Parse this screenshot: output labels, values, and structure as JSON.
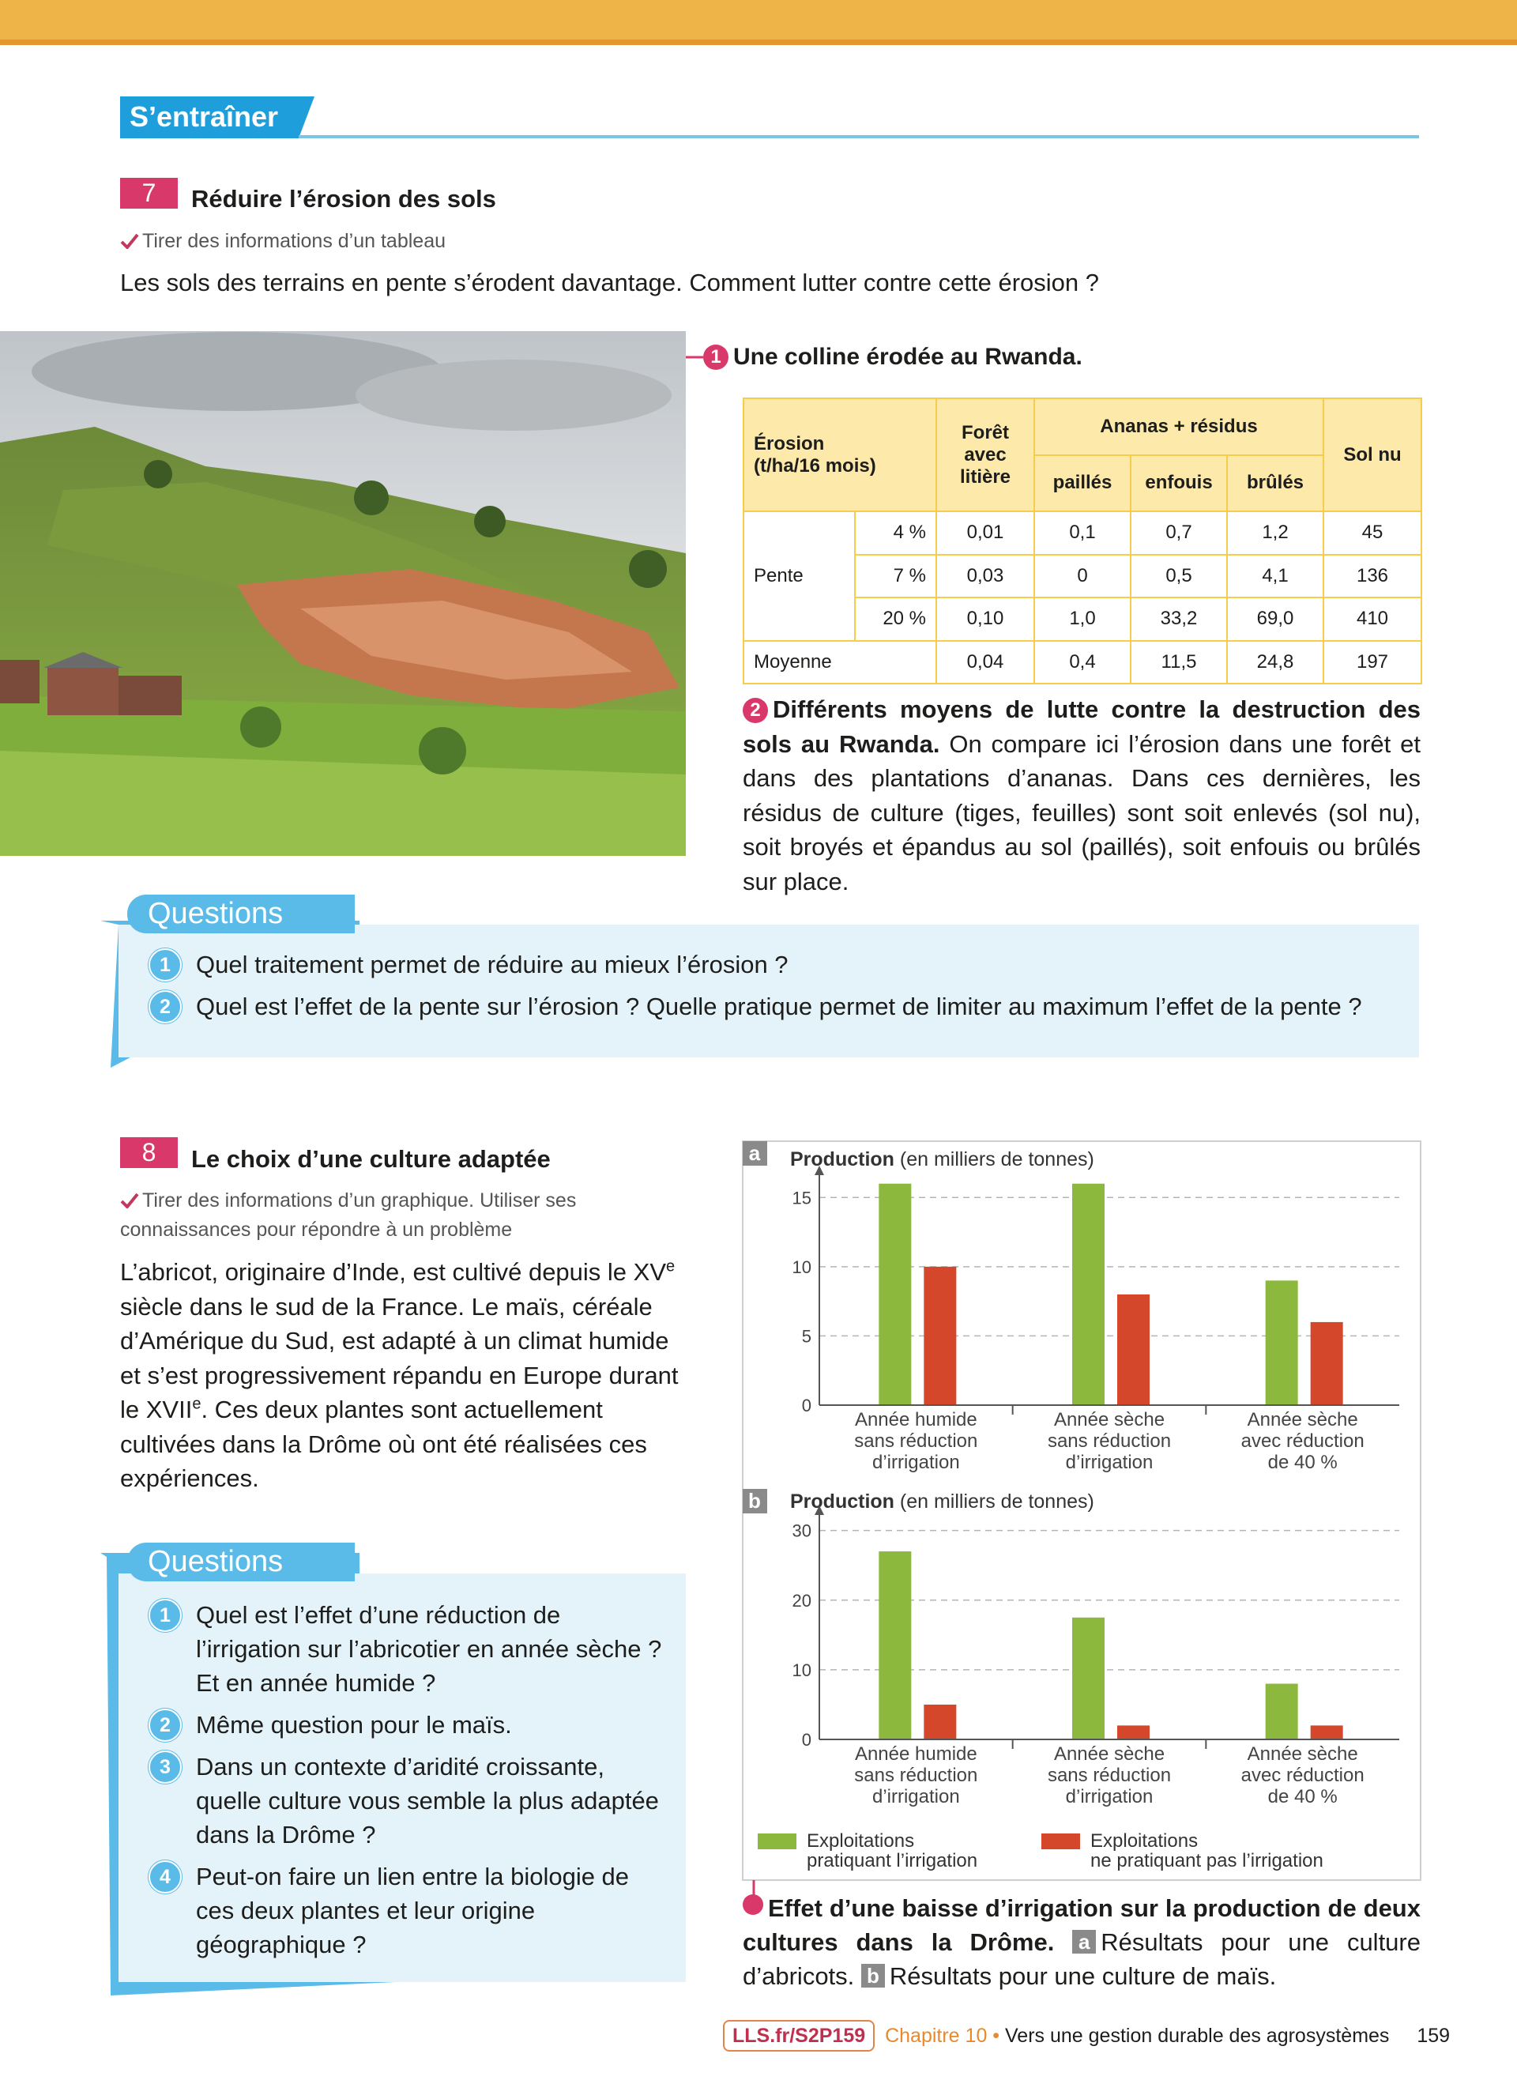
{
  "header": {
    "section": "S’entraîner"
  },
  "exercise7": {
    "number": "7",
    "title": "Réduire l’érosion des sols",
    "skill": "Tirer des informations d’un tableau",
    "intro": "Les sols des terrains en pente s’érodent davantage. Comment lutter contre cette érosion ?",
    "doc1": {
      "number": "1",
      "caption": "Une colline érodée au Rwanda."
    },
    "table": {
      "corner": "Érosion\n(t/ha/16 mois)",
      "forest": "Forêt\navec\nlitière",
      "group": "Ananas + résidus",
      "sub": [
        "paillés",
        "enfouis",
        "brûlés"
      ],
      "bare": "Sol nu",
      "row_group": "Pente",
      "rows": [
        {
          "label": "4 %",
          "cells": [
            "0,01",
            "0,1",
            "0,7",
            "1,2",
            "45"
          ]
        },
        {
          "label": "7 %",
          "cells": [
            "0,03",
            "0",
            "0,5",
            "4,1",
            "136"
          ]
        },
        {
          "label": "20 %",
          "cells": [
            "0,10",
            "1,0",
            "33,2",
            "69,0",
            "410"
          ]
        }
      ],
      "mean": {
        "label": "Moyenne",
        "cells": [
          "0,04",
          "0,4",
          "11,5",
          "24,8",
          "197"
        ]
      }
    },
    "doc2": {
      "number": "2",
      "title": "Différents moyens de lutte contre la destruction des sols au Rwanda.",
      "text": "On compare ici l’érosion dans une forêt et dans des plantations d’ananas. Dans ces dernières, les résidus de culture (tiges, feuilles) sont soit enlevés (sol nu), soit broyés et épandus au sol (paillés), soit enfouis ou brûlés sur place."
    },
    "questions": {
      "label": "Questions",
      "items": [
        {
          "number": "1",
          "text": "Quel traitement permet de réduire au mieux l’érosion ?"
        },
        {
          "number": "2",
          "text": "Quel est l’effet de la pente sur l’érosion ? Quelle pratique permet de limiter au maximum l’effet de la pente ?"
        }
      ]
    }
  },
  "exercise8": {
    "number": "8",
    "title": "Le choix d’une culture adaptée",
    "skill": "Tirer des informations d’un graphique. Utiliser ses connaissances pour répondre à un problème",
    "intro": [
      {
        "text": "L’abricot, originaire d’Inde, est cultivé depuis le XV"
      },
      {
        "text": "e",
        "sup": true
      },
      {
        "text": " siècle dans le sud de la France. Le maïs, céréale d’Amérique du Sud, est adapté à un climat humide et s’est progressivement répandu en Europe durant le XVII"
      },
      {
        "text": "e",
        "sup": true
      },
      {
        "text": ". Ces deux plantes sont actuellement cultivées dans la Drôme où ont été réalisées ces expériences."
      }
    ],
    "questions": {
      "label": "Questions",
      "items": [
        {
          "number": "1",
          "text": "Quel est l’effet d’une réduction de l’irrigation sur l’abricotier en année sèche ? Et en année humide ?"
        },
        {
          "number": "2",
          "text": "Même question pour le maïs."
        },
        {
          "number": "3",
          "text": "Dans un contexte d’aridité croissante, quelle culture vous semble la plus adaptée dans la Drôme ?"
        },
        {
          "number": "4",
          "text": "Peut-on faire un lien entre la biologie de ces deux plantes et leur origine géographique ?"
        }
      ]
    },
    "figure": {
      "title": "Effet d’une baisse d’irrigation sur la production de deux cultures dans la Drôme.",
      "parts": [
        {
          "label": "a",
          "text": "Résultats pour une culture d’abricots."
        },
        {
          "label": "b",
          "text": "Résultats pour une culture de maïs."
        }
      ]
    }
  },
  "chart_data": [
    {
      "type": "bar",
      "label": "a",
      "ylabel": "Production",
      "ylabel_note": "(en milliers de tonnes)",
      "categories": [
        "Année humide\nsans réduction\nd’irrigation",
        "Année sèche\nsans réduction\nd’irrigation",
        "Année sèche\navec réduction\nde 40 %"
      ],
      "series": [
        {
          "color": "#8cb83d",
          "values": [
            16,
            16,
            9
          ]
        },
        {
          "color": "#d5472a",
          "values": [
            10,
            8,
            6
          ]
        }
      ],
      "ylim": [
        0,
        16.5
      ],
      "yticks": [
        0,
        5,
        10,
        15
      ],
      "grid": true
    },
    {
      "type": "bar",
      "label": "b",
      "ylabel": "Production",
      "ylabel_note": "(en milliers de tonnes)",
      "categories": [
        "Année humide\nsans réduction\nd’irrigation",
        "Année sèche\nsans réduction\nd’irrigation",
        "Année sèche\navec réduction\nde 40 %"
      ],
      "series": [
        {
          "name": "Exploitations\npratiquant l’irrigation",
          "color": "#8cb83d",
          "values": [
            27,
            17.5,
            8
          ]
        },
        {
          "name": "Exploitations\nne pratiquant pas l’irrigation",
          "color": "#d5472a",
          "values": [
            5,
            2,
            2
          ]
        }
      ],
      "ylim": [
        0,
        32
      ],
      "yticks": [
        0,
        10,
        20,
        30
      ],
      "grid": true,
      "legend": "bottom"
    }
  ],
  "footer": {
    "link": "LLS.fr/S2P159",
    "chapter": "Chapitre 10",
    "separator": "•",
    "title": "Vers une gestion durable des agrosystèmes",
    "page": "159"
  }
}
